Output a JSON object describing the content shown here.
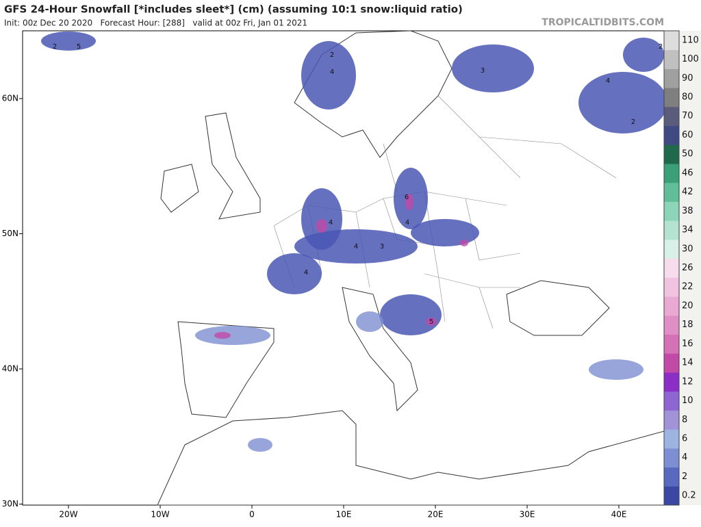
{
  "header": {
    "title": "GFS 24-Hour Snowfall [*includes sleet*] (cm) (assuming 10:1 snow:liquid ratio)",
    "subtitle": "Init: 00z Dec 20 2020   Forecast Hour: [288]   valid at 00z Fri, Jan 01 2021",
    "credit": "TROPICALTIDBITS.COM"
  },
  "map": {
    "lat_labels": [
      "60N",
      "50N",
      "40N",
      "30N"
    ],
    "lon_labels": [
      "20W",
      "10W",
      "0",
      "10E",
      "20E",
      "30E",
      "40E"
    ],
    "contour_labels": [
      "5",
      "2",
      "4",
      "3",
      "2",
      "6",
      "4",
      "4",
      "3",
      "4",
      "4",
      "2",
      "5",
      "4",
      "2"
    ]
  },
  "colorbar": {
    "levels": [
      0.2,
      2,
      4,
      6,
      8,
      10,
      12,
      14,
      16,
      18,
      20,
      22,
      26,
      30,
      34,
      38,
      42,
      46,
      50,
      60,
      70,
      80,
      90,
      100,
      110
    ],
    "colors": [
      "#3b47a3",
      "#5a69c0",
      "#7d8fd2",
      "#9db4e0",
      "#a293d8",
      "#8d66d2",
      "#8a2ec6",
      "#c24aa7",
      "#d571b7",
      "#e08ec6",
      "#e9a9d3",
      "#f1c3e0",
      "#f6dcec",
      "#d8f0e7",
      "#b4e3d1",
      "#8dd5b9",
      "#60bf99",
      "#3b9f77",
      "#1f6a4c",
      "#3f4a82",
      "#5b5b7b",
      "#7f7f7f",
      "#a0a0a0",
      "#c0c0c0",
      "#dddddd"
    ]
  }
}
